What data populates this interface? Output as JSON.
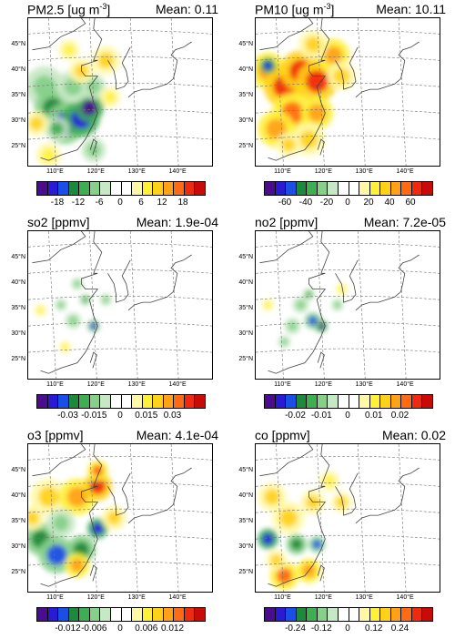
{
  "map_labels": {
    "lat": [
      "45°N",
      "40°N",
      "35°N",
      "30°N",
      "25°N"
    ],
    "lon": [
      "110°E",
      "120°E",
      "130°E",
      "140°E"
    ]
  },
  "colors": {
    "diverging": [
      "#4b0c8e",
      "#2a1ad6",
      "#1a4fe6",
      "#1c8a3a",
      "#3fae52",
      "#86d08a",
      "#c7e8c4",
      "#ffffff",
      "#ffffff",
      "#fff8a6",
      "#fff03a",
      "#ffd21a",
      "#ffa21a",
      "#ff6a14",
      "#ef2a10",
      "#c80a08"
    ],
    "land_outline": "#444444",
    "grid": "#777777"
  },
  "panels": [
    {
      "title": "PM2.5 [ug m",
      "title_sup": "-3",
      "title_end": "]",
      "mean": "Mean: 0.11",
      "ticks": [
        "-18",
        "-12",
        "-6",
        "0",
        "6",
        "12",
        "18"
      ],
      "blobs": [
        {
          "lon": 109,
          "lat": 35,
          "r": 10,
          "v": -0.3
        },
        {
          "lon": 111,
          "lat": 31,
          "r": 9,
          "v": -0.6
        },
        {
          "lon": 114,
          "lat": 28,
          "r": 10,
          "v": -0.8
        },
        {
          "lon": 118,
          "lat": 29,
          "r": 9,
          "v": -0.9
        },
        {
          "lon": 120,
          "lat": 31,
          "r": 7,
          "v": -1.0
        },
        {
          "lon": 112,
          "lat": 27,
          "r": 6,
          "v": -0.5
        },
        {
          "lon": 116,
          "lat": 35,
          "r": 8,
          "v": -0.3
        },
        {
          "lon": 121,
          "lat": 35,
          "r": 6,
          "v": -0.4
        },
        {
          "lon": 118,
          "lat": 38,
          "r": 6,
          "v": 0.4
        },
        {
          "lon": 124,
          "lat": 40,
          "r": 7,
          "v": 0.4
        },
        {
          "lon": 107,
          "lat": 28,
          "r": 6,
          "v": 0.5
        },
        {
          "lon": 125,
          "lat": 33,
          "r": 5,
          "v": 0.3
        },
        {
          "lon": 110,
          "lat": 22,
          "r": 6,
          "v": 0.3
        },
        {
          "lon": 121,
          "lat": 23,
          "r": 6,
          "v": -0.3
        },
        {
          "lon": 115,
          "lat": 42,
          "r": 5,
          "v": 0.3
        }
      ]
    },
    {
      "title": "PM10 [ug m",
      "title_sup": "-3",
      "title_end": "]",
      "mean": "Mean: 10.11",
      "ticks": [
        "-60",
        "-40",
        "-20",
        "0",
        "20",
        "40",
        "60"
      ],
      "blobs": [
        {
          "lon": 108,
          "lat": 38,
          "r": 9,
          "v": 0.6
        },
        {
          "lon": 112,
          "lat": 35,
          "r": 10,
          "v": 0.8
        },
        {
          "lon": 116,
          "lat": 38,
          "r": 10,
          "v": 0.9
        },
        {
          "lon": 120,
          "lat": 36,
          "r": 10,
          "v": 0.8
        },
        {
          "lon": 114,
          "lat": 30,
          "r": 10,
          "v": 0.7
        },
        {
          "lon": 110,
          "lat": 27,
          "r": 9,
          "v": 0.6
        },
        {
          "lon": 120,
          "lat": 30,
          "r": 8,
          "v": 0.6
        },
        {
          "lon": 118,
          "lat": 25,
          "r": 8,
          "v": 0.5
        },
        {
          "lon": 124,
          "lat": 41,
          "r": 8,
          "v": 0.6
        },
        {
          "lon": 126,
          "lat": 37,
          "r": 7,
          "v": 0.5
        },
        {
          "lon": 119,
          "lat": 43,
          "r": 7,
          "v": 0.5
        },
        {
          "lon": 108,
          "lat": 39,
          "r": 4,
          "v": -0.9
        },
        {
          "lon": 113,
          "lat": 24,
          "r": 6,
          "v": 0.5
        }
      ]
    },
    {
      "title": "so2 [ppmv]",
      "title_sup": "",
      "title_end": "",
      "mean": "Mean: 1.9e-04",
      "ticks": [
        "-0.03",
        "-0.015",
        "0",
        "0.015",
        "0.03"
      ],
      "blobs": [
        {
          "lon": 116,
          "lat": 31,
          "r": 4,
          "v": -0.4
        },
        {
          "lon": 119,
          "lat": 35,
          "r": 3,
          "v": -0.5
        },
        {
          "lon": 121,
          "lat": 30,
          "r": 3,
          "v": -0.8
        },
        {
          "lon": 113,
          "lat": 34,
          "r": 3,
          "v": -0.4
        },
        {
          "lon": 108,
          "lat": 33,
          "r": 3,
          "v": 0.3
        },
        {
          "lon": 124,
          "lat": 35,
          "r": 3,
          "v": -0.4
        },
        {
          "lon": 114,
          "lat": 26,
          "r": 3,
          "v": 0.3
        },
        {
          "lon": 117,
          "lat": 38,
          "r": 3,
          "v": -0.3
        }
      ]
    },
    {
      "title": "no2 [ppmv]",
      "title_sup": "",
      "title_end": "",
      "mean": "Mean: 7.2e-05",
      "ticks": [
        "-0.02",
        "-0.01",
        "0",
        "0.01",
        "0.02"
      ],
      "blobs": [
        {
          "lon": 121,
          "lat": 30,
          "r": 3,
          "v": -1.0
        },
        {
          "lon": 119,
          "lat": 31,
          "r": 4,
          "v": -0.7
        },
        {
          "lon": 116,
          "lat": 34,
          "r": 4,
          "v": -0.4
        },
        {
          "lon": 114,
          "lat": 30,
          "r": 4,
          "v": -0.4
        },
        {
          "lon": 118,
          "lat": 36,
          "r": 3,
          "v": -0.5
        },
        {
          "lon": 126,
          "lat": 37,
          "r": 3,
          "v": 0.3
        },
        {
          "lon": 108,
          "lat": 34,
          "r": 3,
          "v": 0.3
        },
        {
          "lon": 112,
          "lat": 27,
          "r": 3,
          "v": -0.4
        },
        {
          "lon": 125,
          "lat": 34,
          "r": 3,
          "v": -0.3
        }
      ]
    },
    {
      "title": "o3 [ppmv]",
      "title_sup": "",
      "title_end": "",
      "mean": "Mean: 4.1e-04",
      "ticks": [
        "-0.012",
        "-0.006",
        "0",
        "0.006",
        "0.012"
      ],
      "blobs": [
        {
          "lon": 110,
          "lat": 38,
          "r": 9,
          "v": 0.5
        },
        {
          "lon": 117,
          "lat": 38,
          "r": 9,
          "v": 0.6
        },
        {
          "lon": 122,
          "lat": 40,
          "r": 7,
          "v": 0.8
        },
        {
          "lon": 108,
          "lat": 30,
          "r": 8,
          "v": -0.6
        },
        {
          "lon": 112,
          "lat": 27,
          "r": 9,
          "v": -0.7
        },
        {
          "lon": 118,
          "lat": 28,
          "r": 7,
          "v": -0.6
        },
        {
          "lon": 113,
          "lat": 33,
          "r": 7,
          "v": -0.4
        },
        {
          "lon": 122,
          "lat": 32,
          "r": 5,
          "v": -0.9
        },
        {
          "lon": 117,
          "lat": 25,
          "r": 6,
          "v": 0.6
        },
        {
          "lon": 126,
          "lat": 34,
          "r": 6,
          "v": 0.5
        },
        {
          "lon": 106,
          "lat": 34,
          "r": 6,
          "v": 0.4
        },
        {
          "lon": 122,
          "lat": 43,
          "r": 5,
          "v": 0.7
        }
      ]
    },
    {
      "title": "co [ppmv]",
      "title_sup": "",
      "title_end": "",
      "mean": "Mean: 0.02",
      "ticks": [
        "-0.24",
        "-0.12",
        "0",
        "0.12",
        "0.24"
      ],
      "blobs": [
        {
          "lon": 109,
          "lat": 38,
          "r": 7,
          "v": 0.5
        },
        {
          "lon": 113,
          "lat": 34,
          "r": 8,
          "v": 0.4
        },
        {
          "lon": 119,
          "lat": 37,
          "r": 6,
          "v": 0.4
        },
        {
          "lon": 108,
          "lat": 30,
          "r": 5,
          "v": -0.9
        },
        {
          "lon": 115,
          "lat": 29,
          "r": 5,
          "v": -0.6
        },
        {
          "lon": 120,
          "lat": 29,
          "r": 4,
          "v": -0.7
        },
        {
          "lon": 112,
          "lat": 23,
          "r": 7,
          "v": 0.7
        },
        {
          "lon": 118,
          "lat": 24,
          "r": 6,
          "v": 0.6
        },
        {
          "lon": 126,
          "lat": 37,
          "r": 5,
          "v": 0.4
        },
        {
          "lon": 110,
          "lat": 26,
          "r": 5,
          "v": 0.5
        },
        {
          "lon": 123,
          "lat": 41,
          "r": 5,
          "v": 0.3
        }
      ]
    }
  ]
}
